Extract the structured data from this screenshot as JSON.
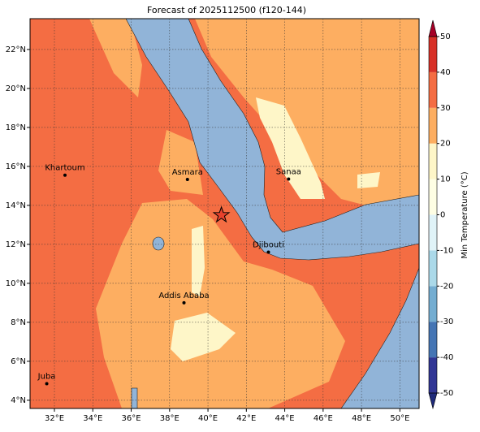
{
  "title": "Forecast of 2025112500 (f120-144)",
  "map": {
    "xlim": [
      30.73,
      51.0
    ],
    "ylim": [
      3.58,
      23.58
    ],
    "grid": true,
    "xticks": [
      {
        "value": 32,
        "label": "32°E"
      },
      {
        "value": 34,
        "label": "34°E"
      },
      {
        "value": 36,
        "label": "36°E"
      },
      {
        "value": 38,
        "label": "38°E"
      },
      {
        "value": 40,
        "label": "40°E"
      },
      {
        "value": 42,
        "label": "42°E"
      },
      {
        "value": 44,
        "label": "44°E"
      },
      {
        "value": 46,
        "label": "46°E"
      },
      {
        "value": 48,
        "label": "48°E"
      },
      {
        "value": 50,
        "label": "50°E"
      }
    ],
    "yticks": [
      {
        "value": 4,
        "label": "4°N"
      },
      {
        "value": 6,
        "label": "6°N"
      },
      {
        "value": 8,
        "label": "8°N"
      },
      {
        "value": 10,
        "label": "10°N"
      },
      {
        "value": 12,
        "label": "12°N"
      },
      {
        "value": 14,
        "label": "14°N"
      },
      {
        "value": 16,
        "label": "16°N"
      },
      {
        "value": 18,
        "label": "18°N"
      },
      {
        "value": 20,
        "label": "20°N"
      },
      {
        "value": 22,
        "label": "22°N"
      }
    ],
    "cities": [
      {
        "name": "Khartoum",
        "lon": 32.55,
        "lat": 15.55
      },
      {
        "name": "Asmara",
        "lon": 38.93,
        "lat": 15.33
      },
      {
        "name": "Sanaa",
        "lon": 44.2,
        "lat": 15.35
      },
      {
        "name": "Djibouti",
        "lon": 43.15,
        "lat": 11.6
      },
      {
        "name": "Addis Ababa",
        "lon": 38.75,
        "lat": 9.0
      },
      {
        "name": "Juba",
        "lon": 31.6,
        "lat": 4.85
      }
    ],
    "marker": {
      "lon": 40.7,
      "lat": 13.5,
      "color": "#e8412c"
    }
  },
  "colorbar": {
    "label": "Min Temperature (°C)",
    "ticks": [
      -50,
      -40,
      -30,
      -20,
      -10,
      0,
      10,
      20,
      30,
      40,
      50
    ],
    "colors": [
      "#313695",
      "#4575b4",
      "#74add1",
      "#abd9e9",
      "#e0f3f8",
      "#fefee4",
      "#fef6c8",
      "#fdae61",
      "#f46d43",
      "#d73027"
    ],
    "extend_colors": [
      "#1f2a7a",
      "#a50026"
    ]
  }
}
